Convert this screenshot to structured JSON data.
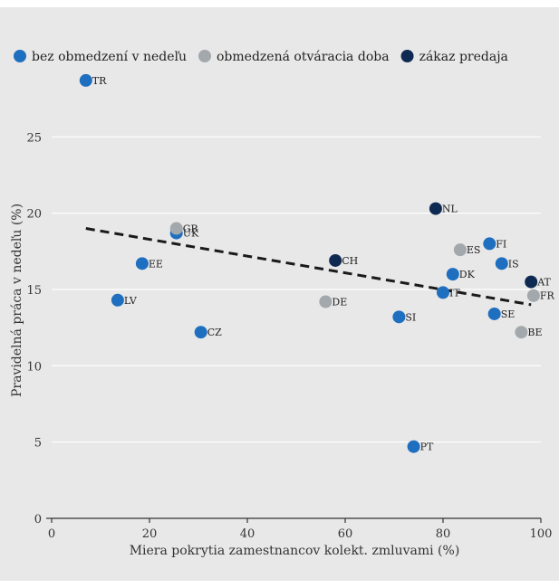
{
  "chart_data": {
    "type": "scatter",
    "title": "",
    "xlabel": "Miera pokrytia zamestnancov kolekt. zmluvami (%)",
    "ylabel": "Pravidelná práca v nedeľu (%)",
    "xlim": [
      0,
      100
    ],
    "ylim": [
      0,
      30
    ],
    "x_ticks": [
      "0",
      "20",
      "40",
      "60",
      "80",
      "100"
    ],
    "y_ticks": [
      "0",
      "5",
      "10",
      "15",
      "20",
      "25"
    ],
    "grid": "horizontal",
    "legend_position": "top-left",
    "series": [
      {
        "name": "bez obmedzení v nedeľu",
        "color": "#1f6fc0",
        "points": [
          {
            "label": "TR",
            "x": 7,
            "y": 28.7
          },
          {
            "label": "UK",
            "x": 25.5,
            "y": 18.7
          },
          {
            "label": "EE",
            "x": 18.5,
            "y": 16.7
          },
          {
            "label": "LV",
            "x": 13.5,
            "y": 14.3
          },
          {
            "label": "CZ",
            "x": 30.5,
            "y": 12.2
          },
          {
            "label": "SI",
            "x": 71,
            "y": 13.2
          },
          {
            "label": "PT",
            "x": 74,
            "y": 4.7
          },
          {
            "label": "IT",
            "x": 80,
            "y": 14.8
          },
          {
            "label": "DK",
            "x": 82,
            "y": 16.0
          },
          {
            "label": "FI",
            "x": 89.5,
            "y": 18.0
          },
          {
            "label": "IS",
            "x": 92,
            "y": 16.7
          },
          {
            "label": "SE",
            "x": 90.5,
            "y": 13.4
          }
        ]
      },
      {
        "name": "obmedzená otváracia doba",
        "color": "#a3a8ac",
        "points": [
          {
            "label": "GR",
            "x": 25.5,
            "y": 19.0
          },
          {
            "label": "DE",
            "x": 56,
            "y": 14.2
          },
          {
            "label": "ES",
            "x": 83.5,
            "y": 17.6
          },
          {
            "label": "BE",
            "x": 96,
            "y": 12.2
          },
          {
            "label": "FR",
            "x": 98.5,
            "y": 14.6
          }
        ]
      },
      {
        "name": "zákaz predaja",
        "color": "#0f2a52",
        "points": [
          {
            "label": "CH",
            "x": 58,
            "y": 16.9
          },
          {
            "label": "NL",
            "x": 78.5,
            "y": 20.3
          },
          {
            "label": "AT",
            "x": 98,
            "y": 15.5
          }
        ]
      }
    ],
    "trendline": {
      "style": "dashed",
      "color": "#1a1a1a",
      "x": [
        7,
        98
      ],
      "y": [
        19.0,
        14.0
      ]
    }
  }
}
